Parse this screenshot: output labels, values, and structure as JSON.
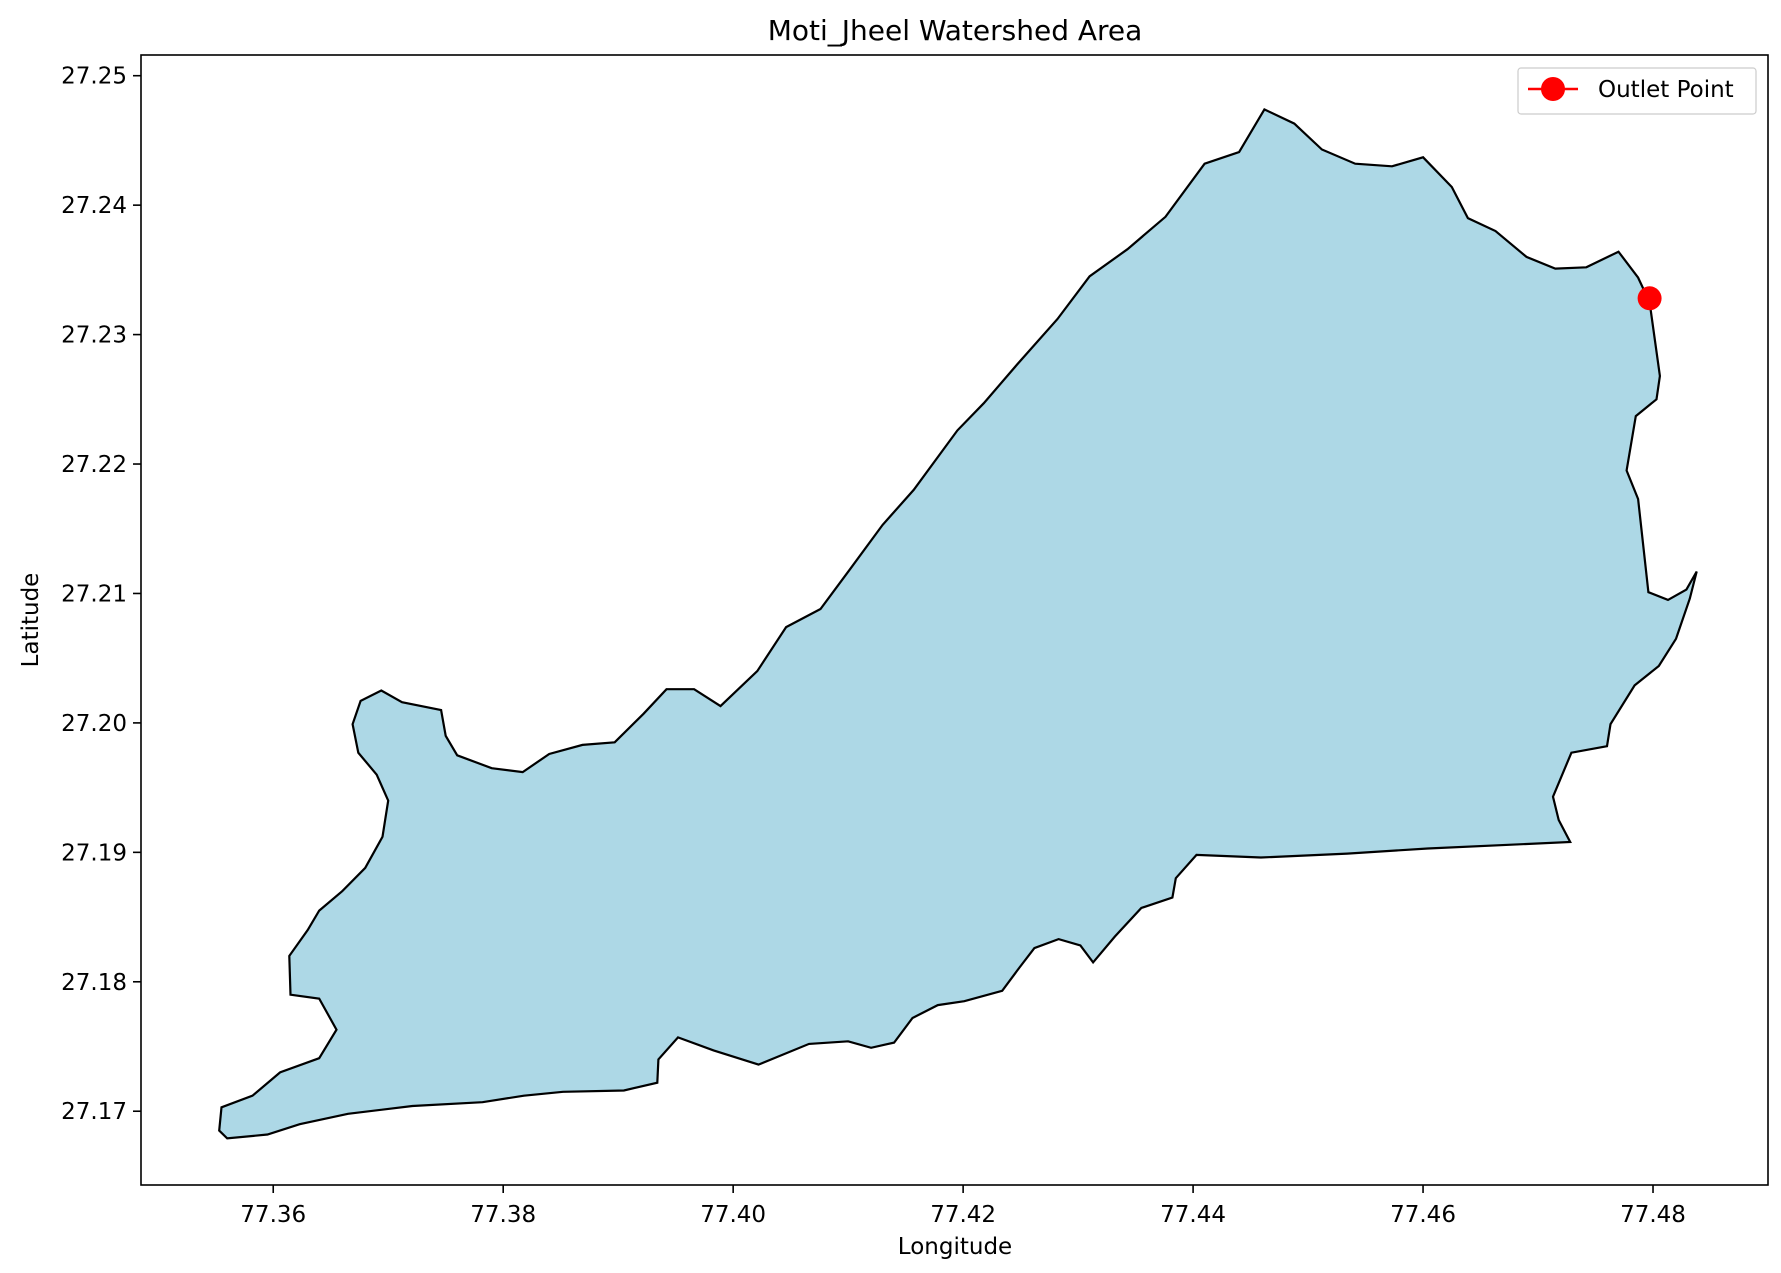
{
  "chart_data": {
    "type": "map",
    "title": "Moti_Jheel Watershed Area",
    "xlabel": "Longitude",
    "ylabel": "Latitude",
    "xlim": [
      77.3485,
      77.49
    ],
    "ylim": [
      27.1643,
      27.2516
    ],
    "xticks": [
      77.36,
      77.38,
      77.4,
      77.42,
      77.44,
      77.46,
      77.48
    ],
    "yticks": [
      27.17,
      27.18,
      27.19,
      27.2,
      27.21,
      27.22,
      27.23,
      27.24,
      27.25
    ],
    "xtick_labels": [
      "77.36",
      "77.38",
      "77.40",
      "77.42",
      "77.44",
      "77.46",
      "77.48"
    ],
    "ytick_labels": [
      "27.17",
      "27.18",
      "27.19",
      "27.20",
      "27.21",
      "27.22",
      "27.23",
      "27.24",
      "27.25"
    ],
    "grid": false,
    "legend": {
      "placement": "top-right",
      "entries": [
        {
          "label": "Outlet Point",
          "marker": "circle",
          "color": "#ff0000"
        }
      ]
    },
    "outlet_point": {
      "lon": 77.4797,
      "lat": 27.2328
    },
    "watershed": {
      "fill": "#add8e6",
      "edge": "#000000",
      "boundary": [
        [
          77.4797,
          27.2325
        ],
        [
          77.4806,
          27.2268
        ],
        [
          77.4803,
          27.225
        ],
        [
          77.4785,
          27.2237
        ],
        [
          77.4777,
          27.2195
        ],
        [
          77.4787,
          27.2173
        ],
        [
          77.4796,
          27.2101
        ],
        [
          77.4813,
          27.2095
        ],
        [
          77.4829,
          27.2103
        ],
        [
          77.4838,
          27.2117
        ],
        [
          77.4832,
          27.2096
        ],
        [
          77.482,
          27.2065
        ],
        [
          77.4805,
          27.2044
        ],
        [
          77.4784,
          27.2029
        ],
        [
          77.4763,
          27.1999
        ],
        [
          77.476,
          27.1982
        ],
        [
          77.4729,
          27.1977
        ],
        [
          77.4713,
          27.1943
        ],
        [
          77.4718,
          27.1925
        ],
        [
          77.4728,
          27.1908
        ],
        [
          77.4604,
          27.1903
        ],
        [
          77.4534,
          27.1899
        ],
        [
          77.4459,
          27.1896
        ],
        [
          77.4403,
          27.1898
        ],
        [
          77.4385,
          27.188
        ],
        [
          77.4382,
          27.1865
        ],
        [
          77.4355,
          27.1857
        ],
        [
          77.4332,
          27.1835
        ],
        [
          77.4313,
          27.1815
        ],
        [
          77.4302,
          27.1828
        ],
        [
          77.4283,
          27.1833
        ],
        [
          77.4262,
          27.1826
        ],
        [
          77.4249,
          27.1811
        ],
        [
          77.4234,
          27.1793
        ],
        [
          77.4201,
          27.1785
        ],
        [
          77.4178,
          27.1782
        ],
        [
          77.4156,
          27.1772
        ],
        [
          77.414,
          27.1753
        ],
        [
          77.412,
          27.1749
        ],
        [
          77.41,
          27.1754
        ],
        [
          77.4066,
          27.1752
        ],
        [
          77.4022,
          27.1736
        ],
        [
          77.3983,
          27.1747
        ],
        [
          77.3952,
          27.1757
        ],
        [
          77.3935,
          27.174
        ],
        [
          77.3934,
          27.1722
        ],
        [
          77.3905,
          27.1716
        ],
        [
          77.3852,
          27.1715
        ],
        [
          77.3818,
          27.1712
        ],
        [
          77.3782,
          27.1707
        ],
        [
          77.3721,
          27.1704
        ],
        [
          77.3665,
          27.1698
        ],
        [
          77.3623,
          27.169
        ],
        [
          77.3595,
          27.1682
        ],
        [
          77.356,
          27.1679
        ],
        [
          77.3553,
          27.1685
        ],
        [
          77.3555,
          27.1703
        ],
        [
          77.3582,
          27.1712
        ],
        [
          77.3606,
          27.173
        ],
        [
          77.364,
          27.1741
        ],
        [
          77.3655,
          27.1763
        ],
        [
          77.364,
          27.1787
        ],
        [
          77.3615,
          27.179
        ],
        [
          77.3614,
          27.182
        ],
        [
          77.363,
          27.184
        ],
        [
          77.364,
          27.1855
        ],
        [
          77.366,
          27.187
        ],
        [
          77.368,
          27.1888
        ],
        [
          77.3695,
          27.1912
        ],
        [
          77.37,
          27.194
        ],
        [
          77.369,
          27.196
        ],
        [
          77.3674,
          27.1977
        ],
        [
          77.3669,
          27.1999
        ],
        [
          77.3676,
          27.2017
        ],
        [
          77.3694,
          27.2025
        ],
        [
          77.3712,
          27.2016
        ],
        [
          77.3746,
          27.201
        ],
        [
          77.375,
          27.199
        ],
        [
          77.376,
          27.1975
        ],
        [
          77.379,
          27.1965
        ],
        [
          77.3817,
          27.1962
        ],
        [
          77.384,
          27.1976
        ],
        [
          77.3869,
          27.1983
        ],
        [
          77.3897,
          27.1985
        ],
        [
          77.3922,
          27.2007
        ],
        [
          77.3942,
          27.2026
        ],
        [
          77.3966,
          27.2026
        ],
        [
          77.3989,
          27.2013
        ],
        [
          77.4021,
          27.204
        ],
        [
          77.4046,
          27.2074
        ],
        [
          77.4076,
          27.2088
        ],
        [
          77.4101,
          27.2118
        ],
        [
          77.413,
          27.2153
        ],
        [
          77.4157,
          27.218
        ],
        [
          77.4195,
          27.2226
        ],
        [
          77.4218,
          27.2247
        ],
        [
          77.4247,
          27.2277
        ],
        [
          77.4282,
          27.2312
        ],
        [
          77.431,
          27.2345
        ],
        [
          77.4343,
          27.2366
        ],
        [
          77.4376,
          27.2391
        ],
        [
          77.441,
          27.2432
        ],
        [
          77.444,
          27.2441
        ],
        [
          77.4462,
          27.2474
        ],
        [
          77.4488,
          27.2463
        ],
        [
          77.4512,
          27.2443
        ],
        [
          77.4541,
          27.2432
        ],
        [
          77.4573,
          27.243
        ],
        [
          77.46,
          27.2437
        ],
        [
          77.4625,
          27.2414
        ],
        [
          77.4639,
          27.239
        ],
        [
          77.4663,
          27.238
        ],
        [
          77.469,
          27.236
        ],
        [
          77.4715,
          27.2351
        ],
        [
          77.4742,
          27.2352
        ],
        [
          77.477,
          27.2364
        ],
        [
          77.4787,
          27.2344
        ],
        [
          77.4797,
          27.2325
        ]
      ]
    }
  }
}
